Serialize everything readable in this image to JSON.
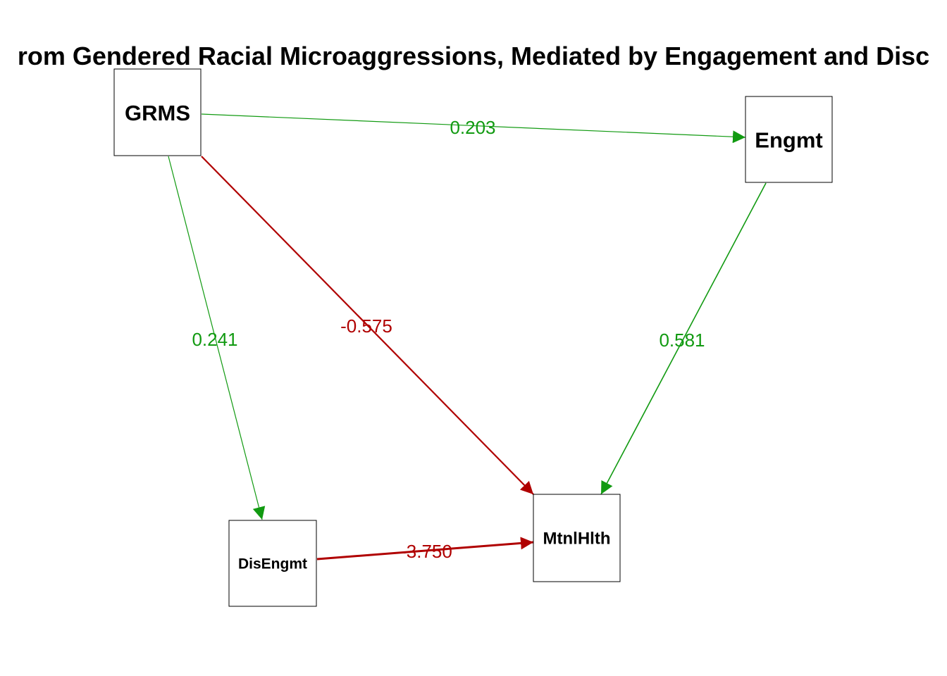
{
  "diagram": {
    "title": "rom Gendered Racial Microaggressions, Mediated by Engagement and Disc",
    "colors": {
      "positive": "#119a11",
      "negative": "#b00000",
      "node_border": "#000000",
      "text": "#000000"
    },
    "nodes": [
      {
        "id": "GRMS",
        "label": "GRMS"
      },
      {
        "id": "Engmt",
        "label": "Engmt"
      },
      {
        "id": "DisEngmt",
        "label": "DisEngmt"
      },
      {
        "id": "MtnlHlth",
        "label": "MtnlHlth"
      }
    ],
    "edges": [
      {
        "from": "GRMS",
        "to": "Engmt",
        "label": "0.203",
        "sign": "positive"
      },
      {
        "from": "GRMS",
        "to": "DisEngmt",
        "label": "0.241",
        "sign": "positive"
      },
      {
        "from": "GRMS",
        "to": "MtnlHlth",
        "label": "-0.575",
        "sign": "negative"
      },
      {
        "from": "Engmt",
        "to": "MtnlHlth",
        "label": "0.581",
        "sign": "positive"
      },
      {
        "from": "DisEngmt",
        "to": "MtnlHlth",
        "label": "-3.750",
        "sign": "negative"
      }
    ]
  }
}
